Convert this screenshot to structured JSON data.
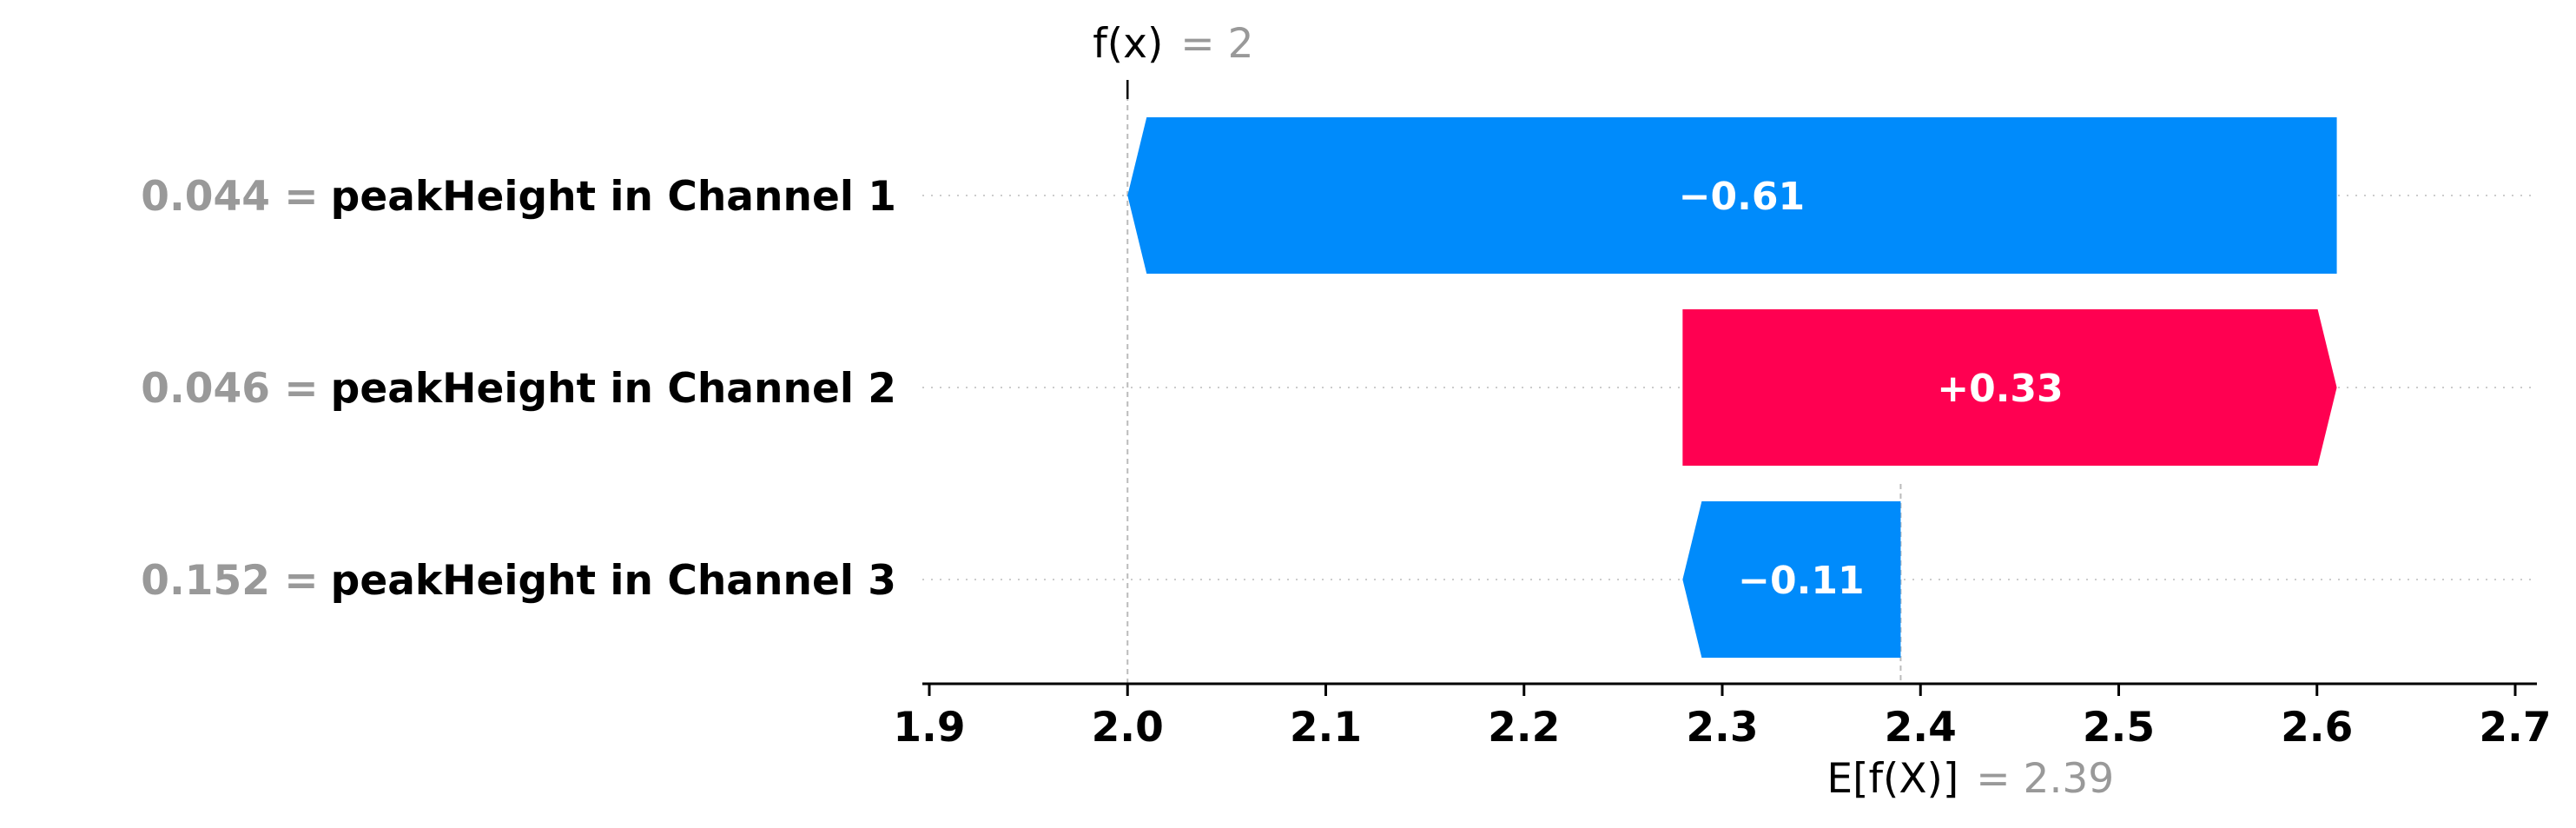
{
  "chart_data": {
    "type": "bar",
    "subtype": "waterfall",
    "title": "",
    "xlabel": "",
    "ylabel": "",
    "xlim": [
      1.9,
      2.7
    ],
    "x_ticks": [
      "1.9",
      "2.0",
      "2.1",
      "2.2",
      "2.3",
      "2.4",
      "2.5",
      "2.6",
      "2.7"
    ],
    "x_tick_values": [
      1.9,
      2.0,
      2.1,
      2.2,
      2.3,
      2.4,
      2.5,
      2.6,
      2.7
    ],
    "fx": {
      "name": "f(x)",
      "value_text": "= 2",
      "value": 2.0
    },
    "expected": {
      "name": "E[f(X)]",
      "value_text": "= 2.39",
      "value": 2.39
    },
    "features": [
      {
        "value_text": "0.044 =",
        "name": "peakHeight in Channel 1",
        "start": 2.61,
        "end": 2.0,
        "label": "−0.61"
      },
      {
        "value_text": "0.046 =",
        "name": "peakHeight in Channel 2",
        "start": 2.28,
        "end": 2.61,
        "label": "+0.33"
      },
      {
        "value_text": "0.152 =",
        "name": "peakHeight in Channel 3",
        "start": 2.39,
        "end": 2.28,
        "label": "−0.11"
      }
    ],
    "colors": {
      "positive": "#ff0051",
      "negative": "#008bfb",
      "axis": "#000000",
      "guide": "#bbbbbb",
      "gridline": "#cccccc"
    },
    "grid": false
  }
}
